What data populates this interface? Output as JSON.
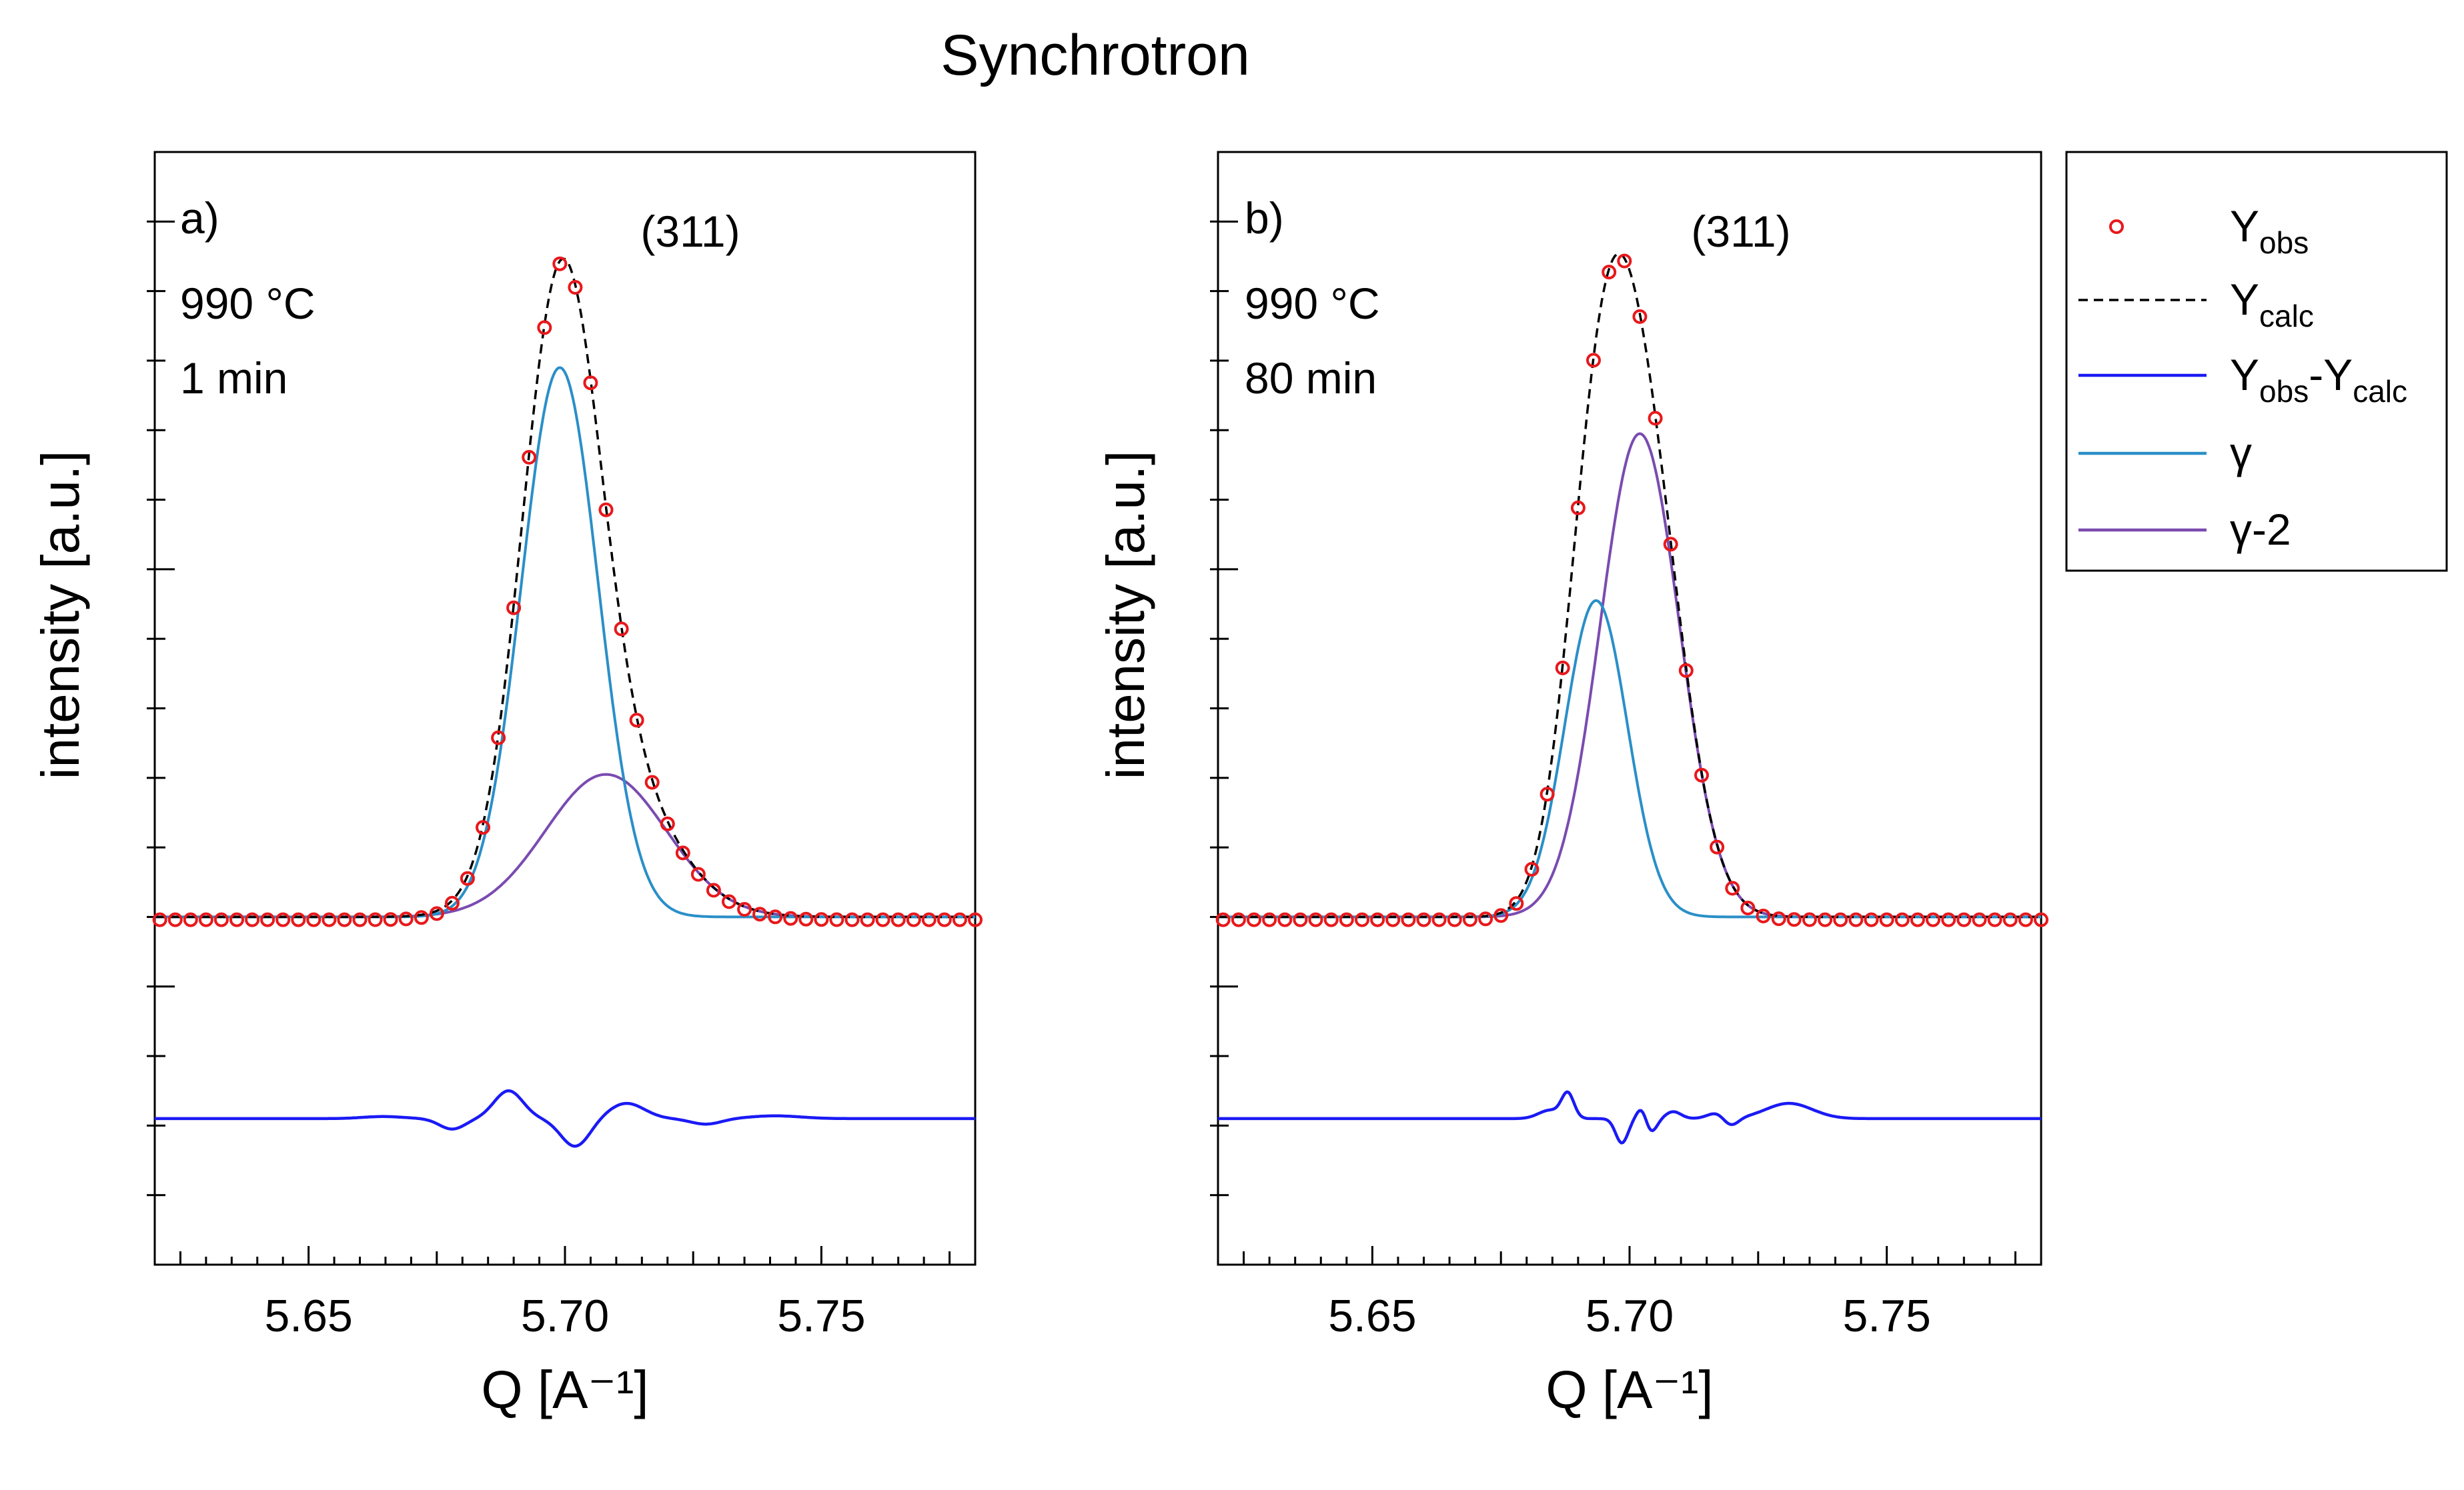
{
  "figure": {
    "title": "Synchrotron"
  },
  "chart_data": [
    {
      "type": "line",
      "panel_label": "a)",
      "annotations": {
        "peak": "(311)",
        "temperature": "990 °C",
        "time": "1 min"
      },
      "xlabel": "Q [A⁻¹]",
      "ylabel": "intensity [a.u.]",
      "xlim": [
        5.62,
        5.78
      ],
      "ylim": [
        -0.5,
        1.1
      ],
      "x_ticks": [
        5.65,
        5.7,
        5.75
      ],
      "x_tick_labels": [
        "5.65",
        "5.70",
        "5.75"
      ],
      "model": {
        "baseline": 0.0,
        "residual_offset": -0.29,
        "components": [
          {
            "name": "γ",
            "center": 5.699,
            "amplitude": 0.79,
            "sigma": 0.0075
          },
          {
            "name": "γ-2",
            "center": 5.708,
            "amplitude": 0.205,
            "sigma": 0.0118
          }
        ],
        "residual_features": [
          {
            "center": 5.6645,
            "amplitude": 0.003,
            "sigma": 0.004
          },
          {
            "center": 5.678,
            "amplitude": -0.015,
            "sigma": 0.0025
          },
          {
            "center": 5.689,
            "amplitude": 0.04,
            "sigma": 0.0028
          },
          {
            "center": 5.702,
            "amplitude": -0.04,
            "sigma": 0.0028
          },
          {
            "center": 5.712,
            "amplitude": 0.022,
            "sigma": 0.0035
          },
          {
            "center": 5.7275,
            "amplitude": -0.008,
            "sigma": 0.003
          },
          {
            "center": 5.741,
            "amplitude": 0.004,
            "sigma": 0.005
          }
        ]
      },
      "observed_points": {
        "x_start": 5.621,
        "x_end": 5.78,
        "step": 0.003
      }
    },
    {
      "type": "line",
      "panel_label": "b)",
      "annotations": {
        "peak": "(311)",
        "temperature": "990 °C",
        "time": "80 min"
      },
      "xlabel": "Q [A⁻¹]",
      "ylabel": "intensity [a.u.]",
      "xlim": [
        5.62,
        5.78
      ],
      "ylim": [
        -0.5,
        1.1
      ],
      "x_ticks": [
        5.65,
        5.7,
        5.75
      ],
      "x_tick_labels": [
        "5.65",
        "5.70",
        "5.75"
      ],
      "model": {
        "baseline": 0.0,
        "residual_offset": -0.29,
        "components": [
          {
            "name": "γ",
            "center": 5.6935,
            "amplitude": 0.455,
            "sigma": 0.0061
          },
          {
            "name": "γ-2",
            "center": 5.702,
            "amplitude": 0.695,
            "sigma": 0.0077
          }
        ],
        "residual_features": [
          {
            "center": 5.6845,
            "amplitude": 0.012,
            "sigma": 0.0022
          },
          {
            "center": 5.688,
            "amplitude": 0.035,
            "sigma": 0.0012
          },
          {
            "center": 5.6985,
            "amplitude": -0.035,
            "sigma": 0.0012
          },
          {
            "center": 5.7025,
            "amplitude": 0.02,
            "sigma": 0.001
          },
          {
            "center": 5.704,
            "amplitude": -0.022,
            "sigma": 0.0012
          },
          {
            "center": 5.7085,
            "amplitude": 0.01,
            "sigma": 0.0015
          },
          {
            "center": 5.7175,
            "amplitude": 0.01,
            "sigma": 0.002
          },
          {
            "center": 5.7195,
            "amplitude": -0.015,
            "sigma": 0.0015
          },
          {
            "center": 5.731,
            "amplitude": 0.022,
            "sigma": 0.0045
          }
        ]
      },
      "observed_points": {
        "x_start": 5.621,
        "x_end": 5.78,
        "step": 0.003
      }
    }
  ],
  "legend": {
    "placement": "right",
    "items": [
      {
        "key": "obs",
        "style": "markers",
        "color": "#e8181b",
        "label": "Y",
        "sub": "obs"
      },
      {
        "key": "calc",
        "style": "dashed",
        "color": "#000000",
        "label": "Y",
        "sub": "calc"
      },
      {
        "key": "diff",
        "style": "line",
        "color": "#1a1af5",
        "label": "Y",
        "sub": "obs",
        "label2": "-Y",
        "sub2": "calc"
      },
      {
        "key": "gamma",
        "style": "line",
        "color": "#2a8fc8",
        "label": "γ"
      },
      {
        "key": "gamma2",
        "style": "line",
        "color": "#7a4bb0",
        "label": "γ-2"
      }
    ]
  }
}
